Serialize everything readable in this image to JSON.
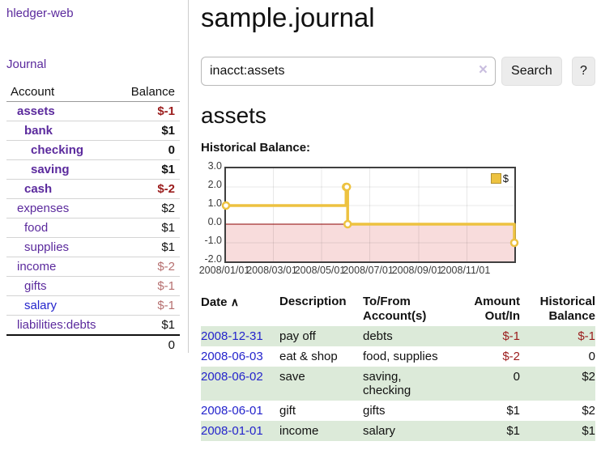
{
  "sidebar": {
    "app_title": "hledger-web",
    "journal_link": "Journal",
    "accounts_header": {
      "account": "Account",
      "balance": "Balance"
    },
    "accounts": [
      {
        "name": "assets",
        "balance": "$-1"
      },
      {
        "name": "bank",
        "balance": "$1"
      },
      {
        "name": "checking",
        "balance": "0"
      },
      {
        "name": "saving",
        "balance": "$1"
      },
      {
        "name": "cash",
        "balance": "$-2"
      },
      {
        "name": "expenses",
        "balance": "$2"
      },
      {
        "name": "food",
        "balance": "$1"
      },
      {
        "name": "supplies",
        "balance": "$1"
      },
      {
        "name": "income",
        "balance": "$-2"
      },
      {
        "name": "gifts",
        "balance": "$-1"
      },
      {
        "name": "salary",
        "balance": "$-1"
      },
      {
        "name": "liabilities:debts",
        "balance": "$1"
      }
    ],
    "total": "0"
  },
  "main": {
    "title": "sample.journal",
    "search": {
      "query": "inacct:assets",
      "clear_icon": "×",
      "button_label": "Search",
      "help_label": "?"
    },
    "account_heading": "assets",
    "chart_title_label": "Historical Balance:"
  },
  "chart_data": {
    "type": "line",
    "step": true,
    "title": "Historical Balance",
    "legend": [
      "$"
    ],
    "legend_position": "top-right",
    "x": [
      "2008-01-01",
      "2008-06-01",
      "2008-06-02",
      "2008-06-03",
      "2008-12-31"
    ],
    "values": [
      1,
      2,
      2,
      0,
      -1
    ],
    "xlim": [
      "2008-01-01",
      "2008-12-31"
    ],
    "ylim": [
      -2,
      3
    ],
    "yticks": [
      -2,
      -1,
      0,
      1,
      2,
      3
    ],
    "ytick_labels": [
      "-2.0",
      "-1.0",
      "0.0",
      "1.0",
      "2.0",
      "3.0"
    ],
    "xticks": [
      "2008-01-01",
      "2008-03-01",
      "2008-05-01",
      "2008-07-01",
      "2008-09-01",
      "2008-11-01"
    ],
    "xtick_labels": [
      "2008/01/01",
      "2008/03/01",
      "2008/05/01",
      "2008/07/01",
      "2008/09/01",
      "2008/11/01"
    ],
    "grid": true,
    "line_color": "#edc240",
    "negative_region_color": "#f8dcdc",
    "zero_line_color": "#8b0000"
  },
  "register": {
    "headers": {
      "date": "Date",
      "description": "Description",
      "tofrom": "To/From Account(s)",
      "amount": "Amount Out/In",
      "balance": "Historical Balance"
    },
    "sort_icon": "∧",
    "rows": [
      {
        "date": "2008-12-31",
        "description": "pay off",
        "accounts": "debts",
        "amount": "$-1",
        "balance": "$-1"
      },
      {
        "date": "2008-06-03",
        "description": "eat & shop",
        "accounts": "food, supplies",
        "amount": "$-2",
        "balance": "0"
      },
      {
        "date": "2008-06-02",
        "description": "save",
        "accounts": "saving, checking",
        "amount": "0",
        "balance": "$2"
      },
      {
        "date": "2008-06-01",
        "description": "gift",
        "accounts": "gifts",
        "amount": "$1",
        "balance": "$2"
      },
      {
        "date": "2008-01-01",
        "description": "income",
        "accounts": "salary",
        "amount": "$1",
        "balance": "$1"
      }
    ]
  }
}
